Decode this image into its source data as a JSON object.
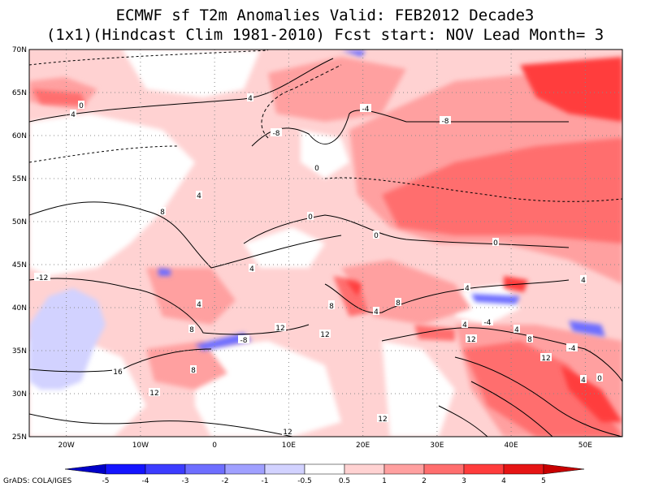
{
  "title": {
    "line1": "ECMWF sf T2m Anomalies Valid: FEB2012 Decade3",
    "line2": "(1x1)(Hindcast Clim 1981-2010) Fcst start: NOV  Lead Month= 3"
  },
  "map": {
    "lon_range": [
      -25,
      55
    ],
    "lat_range": [
      25,
      70
    ],
    "lat_labels": [
      "25N",
      "30N",
      "35N",
      "40N",
      "45N",
      "50N",
      "55N",
      "60N",
      "65N",
      "70N"
    ],
    "lon_labels": [
      "20W",
      "10W",
      "0",
      "10E",
      "20E",
      "30E",
      "40E",
      "50E"
    ],
    "grid": "dotted"
  },
  "colorbar": {
    "labels": [
      "-5",
      "-4",
      "-3",
      "-2",
      "-1",
      "-0.5",
      "0.5",
      "1",
      "2",
      "3",
      "4",
      "5"
    ],
    "colors": [
      "#1414ff",
      "#3c3cff",
      "#6e6eff",
      "#a0a0ff",
      "#d2d2ff",
      "#ffffff",
      "#ffd2d2",
      "#ffa0a0",
      "#ff6e6e",
      "#ff3c3c",
      "#e61414"
    ],
    "end_low": "#0000c8",
    "end_high": "#c80000"
  },
  "contour_labels": [
    "4",
    "0",
    "4",
    "-4",
    "-8",
    "-8",
    "0",
    "4",
    "8",
    "0",
    "0",
    "0",
    "4",
    "-12",
    "4",
    "8",
    "12",
    "-8",
    "12",
    "8",
    "16",
    "12",
    "12",
    "8",
    "4",
    "8",
    "4",
    "-4",
    "-4",
    "4",
    "8",
    "12",
    "12",
    "4",
    "4",
    "0",
    "12",
    "4",
    "8"
  ],
  "credit": "GrADS: COLA/IGES"
}
